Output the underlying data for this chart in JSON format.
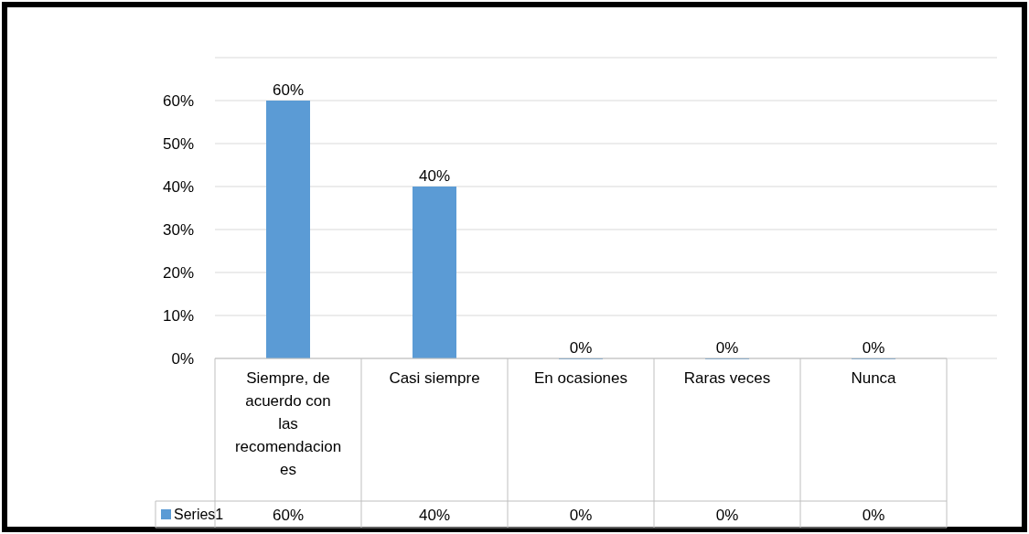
{
  "chart_data": {
    "type": "bar",
    "categories": [
      "Siempre, de acuerdo con las recomendaciones",
      "Casi siempre",
      "En ocasiones",
      "Raras veces",
      "Nunca"
    ],
    "series": [
      {
        "name": "Series1",
        "color": "#5b9bd5",
        "values": [
          60,
          40,
          0,
          0,
          0
        ],
        "value_labels": [
          "60%",
          "40%",
          "0%",
          "0%",
          "0%"
        ]
      }
    ],
    "ylim": [
      0,
      70
    ],
    "yticks": [
      {
        "value": 0,
        "label": "0%"
      },
      {
        "value": 10,
        "label": "10%"
      },
      {
        "value": 20,
        "label": "20%"
      },
      {
        "value": 30,
        "label": "30%"
      },
      {
        "value": 40,
        "label": "40%"
      },
      {
        "value": 50,
        "label": "50%"
      },
      {
        "value": 60,
        "label": "60%"
      },
      {
        "value": 70,
        "label": null
      }
    ],
    "grid": "y",
    "legend": "bottom"
  }
}
